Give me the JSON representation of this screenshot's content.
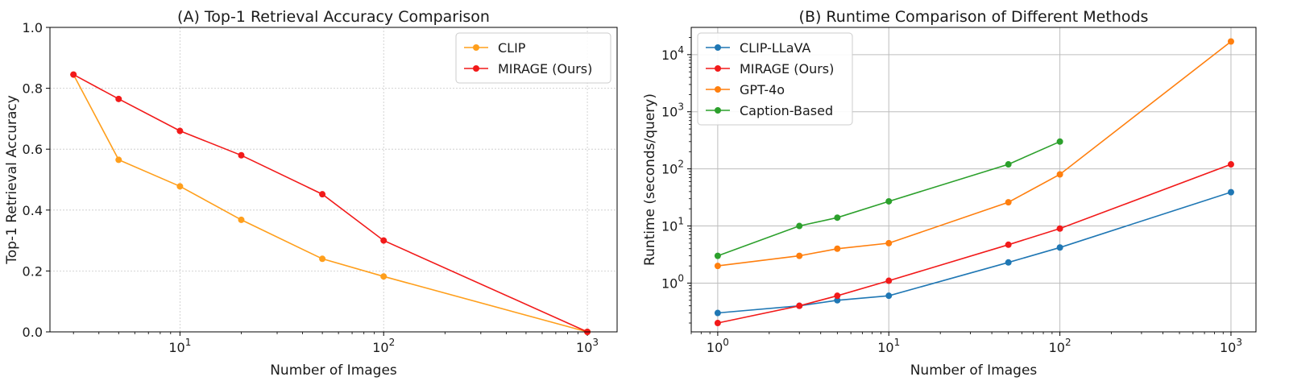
{
  "chart_data": [
    {
      "type": "line",
      "title": "(A) Top-1 Retrieval Accuracy Comparison",
      "xlabel": "Number of Images",
      "ylabel": "Top-1 Retrieval Accuracy",
      "xscale": "log",
      "yscale": "linear",
      "xlim": [
        2.3,
        1400
      ],
      "ylim": [
        0.0,
        1.0
      ],
      "xticks": [
        10,
        100,
        1000
      ],
      "xtick_labels": [
        {
          "base": "10",
          "exp": "1"
        },
        {
          "base": "10",
          "exp": "2"
        },
        {
          "base": "10",
          "exp": "3"
        }
      ],
      "yticks": [
        0.0,
        0.2,
        0.4,
        0.6,
        0.8,
        1.0
      ],
      "ytick_labels": [
        "0.0",
        "0.2",
        "0.4",
        "0.6",
        "0.8",
        "1.0"
      ],
      "grid": true,
      "legend_position": "top-right",
      "series": [
        {
          "name": "CLIP",
          "color": "#ff9f1c",
          "x": [
            3,
            5,
            10,
            20,
            50,
            100,
            1000
          ],
          "y": [
            0.845,
            0.565,
            0.478,
            0.368,
            0.24,
            0.182,
            0.0
          ]
        },
        {
          "name": "MIRAGE (Ours)",
          "color": "#f21a1a",
          "x": [
            3,
            5,
            10,
            20,
            50,
            100,
            1000
          ],
          "y": [
            0.845,
            0.765,
            0.66,
            0.58,
            0.452,
            0.3,
            0.0
          ]
        }
      ]
    },
    {
      "type": "line",
      "title": "(B) Runtime Comparison of Different Methods",
      "xlabel": "Number of Images",
      "ylabel": "Runtime (seconds/query)",
      "xscale": "log",
      "yscale": "log",
      "xlim": [
        0.7,
        1400
      ],
      "ylim": [
        0.14,
        30000
      ],
      "xticks": [
        1,
        10,
        100,
        1000
      ],
      "xtick_labels": [
        {
          "base": "10",
          "exp": "0"
        },
        {
          "base": "10",
          "exp": "1"
        },
        {
          "base": "10",
          "exp": "2"
        },
        {
          "base": "10",
          "exp": "3"
        }
      ],
      "yticks": [
        1,
        10,
        100,
        1000,
        10000
      ],
      "ytick_labels": [
        {
          "base": "10",
          "exp": "0"
        },
        {
          "base": "10",
          "exp": "1"
        },
        {
          "base": "10",
          "exp": "2"
        },
        {
          "base": "10",
          "exp": "3"
        },
        {
          "base": "10",
          "exp": "4"
        }
      ],
      "grid": true,
      "legend_position": "top-left",
      "series": [
        {
          "name": "CLIP-LLaVA",
          "color": "#1f77b4",
          "x": [
            1,
            3,
            5,
            10,
            50,
            100,
            1000
          ],
          "y": [
            0.3,
            0.4,
            0.5,
            0.6,
            2.3,
            4.2,
            39
          ]
        },
        {
          "name": "MIRAGE (Ours)",
          "color": "#f21a1a",
          "x": [
            1,
            3,
            5,
            10,
            50,
            100,
            1000
          ],
          "y": [
            0.2,
            0.4,
            0.6,
            1.1,
            4.7,
            9,
            120
          ]
        },
        {
          "name": "GPT-4o",
          "color": "#ff7f0e",
          "x": [
            1,
            3,
            5,
            10,
            50,
            100,
            1000
          ],
          "y": [
            2,
            3,
            4,
            5,
            26,
            80,
            17000
          ]
        },
        {
          "name": "Caption-Based",
          "color": "#2ca02c",
          "x": [
            1,
            3,
            5,
            10,
            50,
            100
          ],
          "y": [
            3,
            10,
            14,
            27,
            120,
            300
          ]
        }
      ]
    }
  ]
}
